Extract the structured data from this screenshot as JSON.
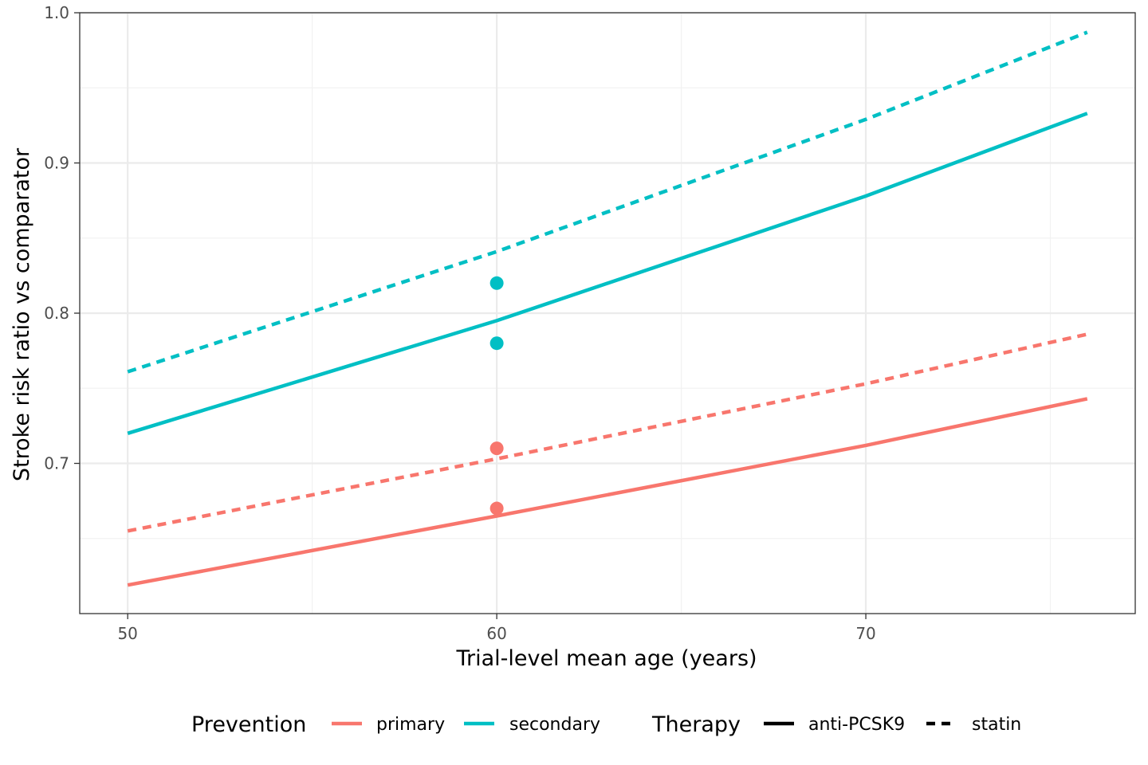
{
  "chart_data": {
    "type": "line",
    "xlabel": "Trial-level mean age (years)",
    "ylabel": "Stroke risk ratio vs comparator",
    "xlim": [
      48.7,
      77.3
    ],
    "ylim": [
      0.6,
      1.0
    ],
    "x_ticks": [
      50,
      60,
      70
    ],
    "x_tick_labels": [
      "50",
      "60",
      "70"
    ],
    "y_ticks": [
      0.7,
      0.8,
      0.9,
      1.0
    ],
    "y_tick_labels": [
      "0.7",
      "0.8",
      "0.9",
      "1.0"
    ],
    "grid": true,
    "legend_position": "bottom",
    "colors": {
      "primary": "#F8766D",
      "secondary": "#00BFC4"
    },
    "series": [
      {
        "prevention": "primary",
        "therapy": "anti-PCSK9",
        "x": [
          50,
          60,
          70,
          76
        ],
        "y": [
          0.619,
          0.665,
          0.712,
          0.743
        ]
      },
      {
        "prevention": "primary",
        "therapy": "statin",
        "x": [
          50,
          60,
          70,
          76
        ],
        "y": [
          0.655,
          0.703,
          0.753,
          0.786
        ]
      },
      {
        "prevention": "secondary",
        "therapy": "anti-PCSK9",
        "x": [
          50,
          60,
          70,
          76
        ],
        "y": [
          0.72,
          0.795,
          0.878,
          0.933
        ]
      },
      {
        "prevention": "secondary",
        "therapy": "statin",
        "x": [
          50,
          60,
          70,
          76
        ],
        "y": [
          0.761,
          0.841,
          0.929,
          0.987
        ]
      }
    ],
    "points": [
      {
        "prevention": "primary",
        "x": 60,
        "y": 0.71
      },
      {
        "prevention": "primary",
        "x": 60,
        "y": 0.67
      },
      {
        "prevention": "secondary",
        "x": 60,
        "y": 0.82
      },
      {
        "prevention": "secondary",
        "x": 60,
        "y": 0.78
      }
    ],
    "legend": {
      "prevention_title": "Prevention",
      "prevention_items": [
        "primary",
        "secondary"
      ],
      "therapy_title": "Therapy",
      "therapy_items": [
        "anti-PCSK9",
        "statin"
      ]
    }
  }
}
